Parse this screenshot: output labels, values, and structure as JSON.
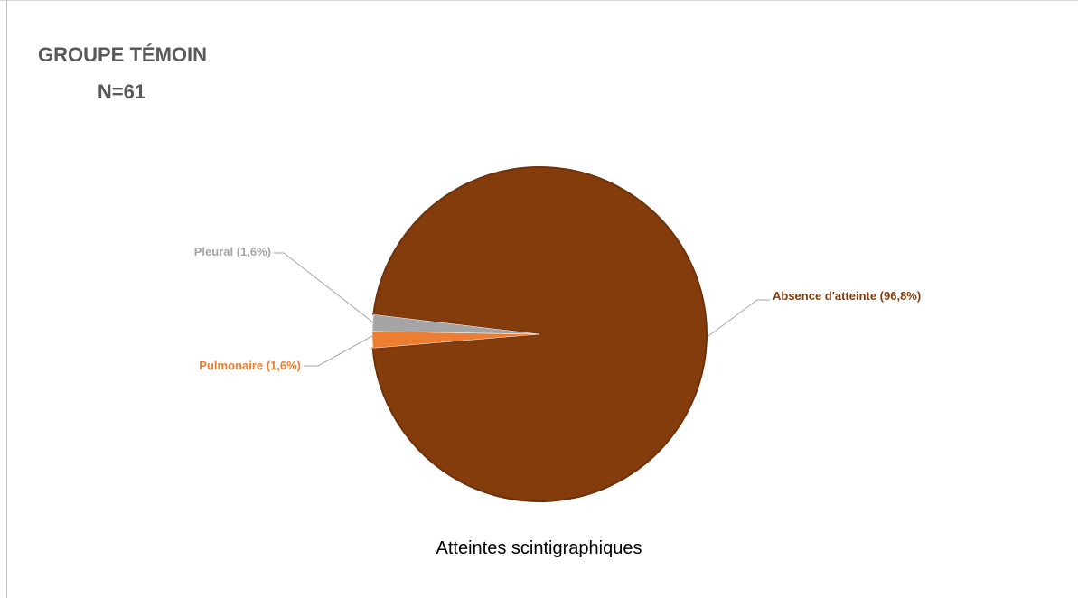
{
  "title": [
    "GROUPE TÉMOIN",
    "N=61"
  ],
  "caption": "Atteintes scintigraphiques",
  "chart_data": {
    "type": "pie",
    "slices": [
      {
        "name": "Absence d'atteinte",
        "value": 96.8,
        "label": "Absence d'atteinte (96,8%)",
        "color": "#843c0c"
      },
      {
        "name": "Pulmonaire",
        "value": 1.6,
        "label": "Pulmonaire (1,6%)",
        "color": "#ed7d31"
      },
      {
        "name": "Pleural",
        "value": 1.6,
        "label": "Pleural (1,6%)",
        "color": "#a5a5a5"
      }
    ],
    "label_colors": {
      "Absence d'atteinte": "#843c0c",
      "Pulmonaire": "#ed7d31",
      "Pleural": "#a5a5a5"
    }
  }
}
